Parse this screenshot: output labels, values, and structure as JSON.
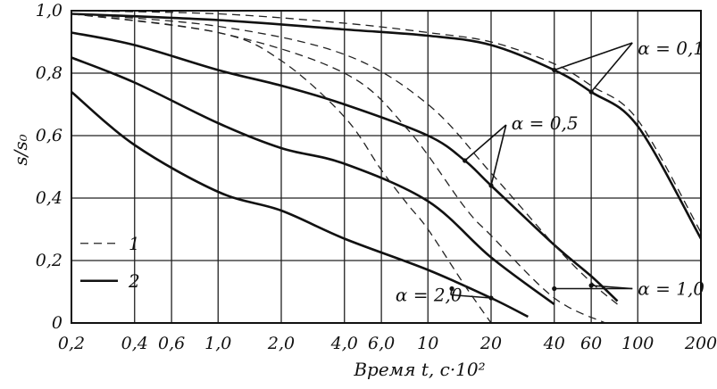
{
  "chart_data": {
    "type": "line",
    "xlabel": "Время t, с·10²",
    "ylabel": "s/s₀",
    "xscale": "log",
    "xlim": [
      0.2,
      200
    ],
    "ylim": [
      0,
      1.0
    ],
    "x_ticks": [
      0.2,
      0.4,
      0.6,
      1.0,
      2.0,
      4.0,
      6.0,
      10,
      20,
      40,
      60,
      100,
      200
    ],
    "x_tick_labels": [
      "0,2",
      "0,4",
      "0,6",
      "1,0",
      "2,0",
      "4,0",
      "6,0",
      "10",
      "20",
      "40",
      "60",
      "100",
      "200"
    ],
    "y_ticks": [
      0,
      0.2,
      0.4,
      0.6,
      0.8,
      1.0
    ],
    "y_tick_labels": [
      "0",
      "0,2",
      "0,4",
      "0,6",
      "0,8",
      "1,0"
    ],
    "grid": true,
    "legend": {
      "placement": "bottom-left",
      "entries": [
        {
          "label": "1",
          "style": "dashed"
        },
        {
          "label": "2",
          "style": "solid"
        }
      ]
    },
    "series": [
      {
        "name": "α = 0,1",
        "style": "solid",
        "points": [
          [
            0.2,
            0.99
          ],
          [
            1.0,
            0.97
          ],
          [
            4.0,
            0.94
          ],
          [
            10,
            0.92
          ],
          [
            20,
            0.89
          ],
          [
            40,
            0.81
          ],
          [
            60,
            0.74
          ],
          [
            100,
            0.63
          ],
          [
            200,
            0.27
          ]
        ]
      },
      {
        "name": "α = 0,1",
        "style": "dashed",
        "points": [
          [
            0.2,
            1.0
          ],
          [
            1.0,
            0.99
          ],
          [
            4.0,
            0.96
          ],
          [
            10,
            0.93
          ],
          [
            20,
            0.9
          ],
          [
            40,
            0.83
          ],
          [
            60,
            0.76
          ],
          [
            100,
            0.65
          ],
          [
            200,
            0.29
          ]
        ]
      },
      {
        "name": "α = 0,5",
        "style": "solid",
        "points": [
          [
            0.2,
            0.93
          ],
          [
            0.4,
            0.89
          ],
          [
            1.0,
            0.81
          ],
          [
            2.0,
            0.76
          ],
          [
            4.0,
            0.7
          ],
          [
            10,
            0.6
          ],
          [
            15,
            0.52
          ],
          [
            20,
            0.44
          ],
          [
            40,
            0.25
          ],
          [
            60,
            0.15
          ],
          [
            80,
            0.07
          ]
        ]
      },
      {
        "name": "α = 0,5",
        "style": "dashed",
        "points": [
          [
            0.2,
            0.99
          ],
          [
            1.0,
            0.95
          ],
          [
            4.0,
            0.86
          ],
          [
            10,
            0.7
          ],
          [
            20,
            0.48
          ],
          [
            40,
            0.25
          ],
          [
            60,
            0.13
          ],
          [
            80,
            0.06
          ]
        ]
      },
      {
        "name": "α = 1,0",
        "style": "solid",
        "points": [
          [
            0.2,
            0.85
          ],
          [
            0.4,
            0.77
          ],
          [
            1.0,
            0.64
          ],
          [
            2.0,
            0.56
          ],
          [
            4.0,
            0.51
          ],
          [
            10,
            0.39
          ],
          [
            20,
            0.21
          ],
          [
            40,
            0.06
          ]
        ]
      },
      {
        "name": "α = 1,0",
        "style": "dashed",
        "points": [
          [
            0.2,
            0.99
          ],
          [
            1.0,
            0.93
          ],
          [
            4.0,
            0.8
          ],
          [
            8.0,
            0.62
          ],
          [
            15,
            0.37
          ],
          [
            20,
            0.28
          ],
          [
            40,
            0.08
          ],
          [
            70,
            0.0
          ]
        ]
      },
      {
        "name": "α = 2,0",
        "style": "solid",
        "points": [
          [
            0.2,
            0.74
          ],
          [
            0.4,
            0.57
          ],
          [
            1.0,
            0.42
          ],
          [
            2.0,
            0.36
          ],
          [
            4.0,
            0.27
          ],
          [
            10,
            0.17
          ],
          [
            20,
            0.08
          ],
          [
            30,
            0.02
          ]
        ]
      },
      {
        "name": "α = 2,0",
        "style": "dashed",
        "points": [
          [
            0.2,
            0.99
          ],
          [
            1.0,
            0.93
          ],
          [
            2.0,
            0.84
          ],
          [
            4.0,
            0.66
          ],
          [
            6.0,
            0.49
          ],
          [
            8.0,
            0.38
          ],
          [
            10,
            0.3
          ],
          [
            15,
            0.12
          ],
          [
            20,
            0.0
          ]
        ]
      }
    ],
    "annotations": [
      {
        "text": "α = 0,1",
        "at_x": 100,
        "at_y": 0.88
      },
      {
        "text": "α = 0,5",
        "at_x": 25,
        "at_y": 0.64
      },
      {
        "text": "α = 1,0",
        "at_x": 100,
        "at_y": 0.11
      },
      {
        "text": "α = 2,0",
        "at_x": 7,
        "at_y": 0.09
      }
    ]
  }
}
